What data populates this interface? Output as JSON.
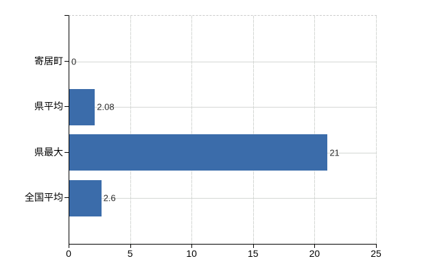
{
  "chart_data": {
    "type": "bar",
    "orientation": "horizontal",
    "title": "",
    "xlabel": "",
    "ylabel": "",
    "categories": [
      "寄居町",
      "県平均",
      "県最大",
      "全国平均"
    ],
    "values": [
      0,
      2.08,
      21,
      2.6
    ],
    "value_labels": [
      "0",
      "2.08",
      "21",
      "2.6"
    ],
    "x_ticks": [
      0,
      5,
      10,
      15,
      20,
      25
    ],
    "x_tick_labels": [
      "0",
      "5",
      "10",
      "15",
      "20",
      "25"
    ],
    "xlim": [
      0,
      25
    ],
    "grid": true,
    "legend": false,
    "bar_color": "#3b6caa",
    "grid_color": "#d4d7d4",
    "axis_color": "#000000",
    "background_color": "#ffffff"
  }
}
